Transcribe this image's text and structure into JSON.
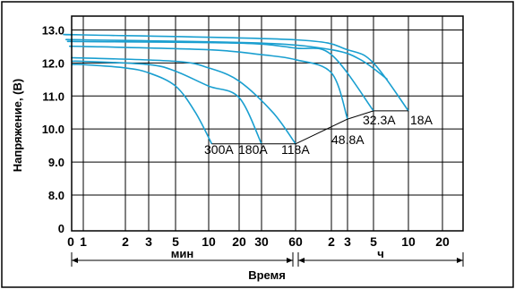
{
  "chart_data": {
    "type": "line",
    "ylabel": "Напряжение, (В)",
    "xlabel": "Время",
    "ylim": [
      0,
      13.5
    ],
    "y_ticks": [
      {
        "label": "0",
        "value": 0
      },
      {
        "label": "8.0",
        "value": 8.0
      },
      {
        "label": "9.0",
        "value": 9.0
      },
      {
        "label": "10.0",
        "value": 10.0
      },
      {
        "label": "11.0",
        "value": 11.0
      },
      {
        "label": "12.0",
        "value": 12.0
      },
      {
        "label": "13.0",
        "value": 13.0
      }
    ],
    "x_ticks": [
      {
        "label": "0",
        "minutes": 0
      },
      {
        "label": "1",
        "minutes": 1
      },
      {
        "label": "2",
        "minutes": 2
      },
      {
        "label": "3",
        "minutes": 3
      },
      {
        "label": "5",
        "minutes": 5
      },
      {
        "label": "10",
        "minutes": 10
      },
      {
        "label": "20",
        "minutes": 20
      },
      {
        "label": "30",
        "minutes": 30
      },
      {
        "label": "60",
        "minutes": 60
      },
      {
        "label": "2",
        "minutes": 120
      },
      {
        "label": "3",
        "minutes": 180
      },
      {
        "label": "5",
        "minutes": 300
      },
      {
        "label": "10",
        "minutes": 600
      },
      {
        "label": "20",
        "minutes": 1200
      }
    ],
    "x_groups": [
      {
        "label": "мин",
        "from_minutes": 0,
        "to_minutes": 60
      },
      {
        "label": "ч",
        "from_minutes": 60,
        "to_minutes": 1200
      }
    ],
    "grid": true,
    "line_color": "#1a9fd0",
    "series": [
      {
        "label": "300A",
        "points": [
          [
            1,
            11.95
          ],
          [
            2,
            11.85
          ],
          [
            3,
            11.7
          ],
          [
            5,
            11.3
          ],
          [
            8,
            10.5
          ],
          [
            11,
            9.55
          ]
        ]
      },
      {
        "label": "180A",
        "points": [
          [
            1,
            12.05
          ],
          [
            3,
            11.95
          ],
          [
            5,
            11.75
          ],
          [
            10,
            11.3
          ],
          [
            20,
            10.95
          ],
          [
            30,
            9.55
          ]
        ]
      },
      {
        "label": "118A",
        "points": [
          [
            1,
            12.15
          ],
          [
            5,
            12.05
          ],
          [
            10,
            11.85
          ],
          [
            20,
            11.45
          ],
          [
            40,
            10.5
          ],
          [
            60,
            9.55
          ]
        ]
      },
      {
        "label": "48.8A",
        "points": [
          [
            1,
            12.5
          ],
          [
            10,
            12.4
          ],
          [
            30,
            12.25
          ],
          [
            60,
            12.1
          ],
          [
            120,
            11.7
          ],
          [
            180,
            10.3
          ]
        ]
      },
      {
        "label": "32.3A",
        "points": [
          [
            1,
            12.65
          ],
          [
            20,
            12.6
          ],
          [
            60,
            12.45
          ],
          [
            120,
            12.25
          ],
          [
            300,
            10.55
          ]
        ]
      },
      {
        "label": "18A",
        "points": [
          [
            1,
            12.85
          ],
          [
            60,
            12.7
          ],
          [
            180,
            12.4
          ],
          [
            300,
            12.0
          ],
          [
            600,
            10.55
          ]
        ]
      },
      {
        "label": "",
        "points": [
          [
            1,
            12.7
          ],
          [
            30,
            12.6
          ],
          [
            120,
            12.4
          ],
          [
            240,
            12.1
          ],
          [
            420,
            11.5
          ]
        ]
      }
    ],
    "annotations": [
      {
        "text": "300A"
      },
      {
        "text": "180A"
      },
      {
        "text": "118A"
      },
      {
        "text": "48.8A"
      },
      {
        "text": "32.3A"
      },
      {
        "text": "18A"
      }
    ]
  }
}
